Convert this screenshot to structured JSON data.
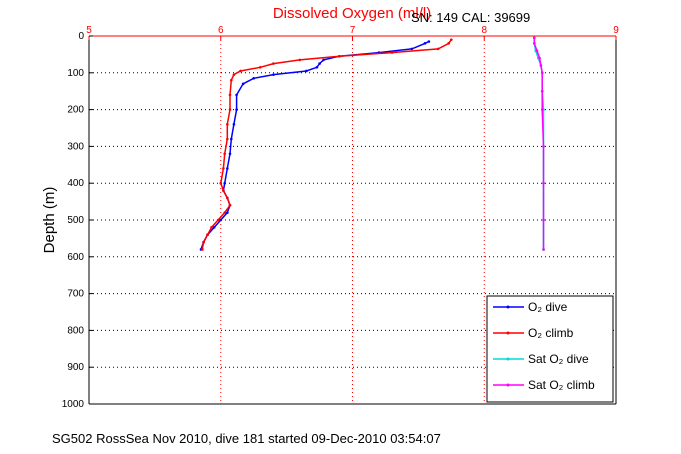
{
  "chart_data": {
    "type": "line",
    "title": "Dissolved Oxygen (ml/l)",
    "serial": "SN: 149  CAL: 39699",
    "ylabel": "Depth (m)",
    "footer": "SG502 RossSea Nov 2010, dive 181 started 09-Dec-2010 03:54:07",
    "xlim": [
      5,
      9
    ],
    "ylim": [
      0,
      1000
    ],
    "y_inverted": true,
    "xticks": [
      "5",
      "6",
      "7",
      "8",
      "9"
    ],
    "yticks": [
      "0",
      "100",
      "200",
      "300",
      "400",
      "500",
      "600",
      "700",
      "800",
      "900",
      "1000"
    ],
    "grid": true,
    "legend_position": "bottom-right",
    "series": [
      {
        "name": "O₂ dive",
        "color": "#0000ff",
        "points": [
          [
            7.58,
            15
          ],
          [
            7.55,
            20
          ],
          [
            7.45,
            35
          ],
          [
            7.2,
            45
          ],
          [
            6.9,
            55
          ],
          [
            6.78,
            65
          ],
          [
            6.75,
            75
          ],
          [
            6.73,
            85
          ],
          [
            6.65,
            95
          ],
          [
            6.4,
            105
          ],
          [
            6.25,
            115
          ],
          [
            6.17,
            130
          ],
          [
            6.12,
            160
          ],
          [
            6.12,
            200
          ],
          [
            6.1,
            240
          ],
          [
            6.08,
            280
          ],
          [
            6.07,
            320
          ],
          [
            6.05,
            360
          ],
          [
            6.03,
            400
          ],
          [
            6.02,
            420
          ],
          [
            6.05,
            440
          ],
          [
            6.07,
            460
          ],
          [
            6.05,
            480
          ],
          [
            6.0,
            500
          ],
          [
            5.95,
            520
          ],
          [
            5.9,
            540
          ],
          [
            5.87,
            560
          ],
          [
            5.85,
            580
          ]
        ]
      },
      {
        "name": "O₂ climb",
        "color": "#ff0000",
        "points": [
          [
            7.75,
            10
          ],
          [
            7.73,
            20
          ],
          [
            7.65,
            35
          ],
          [
            7.3,
            45
          ],
          [
            6.9,
            55
          ],
          [
            6.6,
            65
          ],
          [
            6.4,
            75
          ],
          [
            6.3,
            85
          ],
          [
            6.15,
            95
          ],
          [
            6.1,
            105
          ],
          [
            6.08,
            120
          ],
          [
            6.07,
            160
          ],
          [
            6.07,
            200
          ],
          [
            6.05,
            240
          ],
          [
            6.05,
            280
          ],
          [
            6.03,
            320
          ],
          [
            6.02,
            360
          ],
          [
            6.0,
            400
          ],
          [
            6.02,
            420
          ],
          [
            6.05,
            440
          ],
          [
            6.07,
            460
          ],
          [
            6.03,
            480
          ],
          [
            5.98,
            500
          ],
          [
            5.93,
            520
          ],
          [
            5.9,
            540
          ],
          [
            5.87,
            560
          ],
          [
            5.86,
            580
          ]
        ]
      },
      {
        "name": "Sat O₂ dive",
        "color": "#00d8d8",
        "points": [
          [
            8.38,
            5
          ],
          [
            8.38,
            20
          ],
          [
            8.39,
            40
          ],
          [
            8.41,
            60
          ],
          [
            8.43,
            80
          ],
          [
            8.44,
            100
          ],
          [
            8.44,
            150
          ],
          [
            8.45,
            200
          ],
          [
            8.45,
            300
          ],
          [
            8.45,
            400
          ],
          [
            8.45,
            500
          ],
          [
            8.45,
            580
          ]
        ]
      },
      {
        "name": "Sat O₂ climb",
        "color": "#ff00ff",
        "points": [
          [
            8.38,
            5
          ],
          [
            8.38,
            20
          ],
          [
            8.4,
            40
          ],
          [
            8.42,
            60
          ],
          [
            8.43,
            80
          ],
          [
            8.44,
            100
          ],
          [
            8.44,
            150
          ],
          [
            8.44,
            200
          ],
          [
            8.45,
            300
          ],
          [
            8.45,
            400
          ],
          [
            8.45,
            500
          ],
          [
            8.45,
            580
          ]
        ]
      }
    ]
  }
}
